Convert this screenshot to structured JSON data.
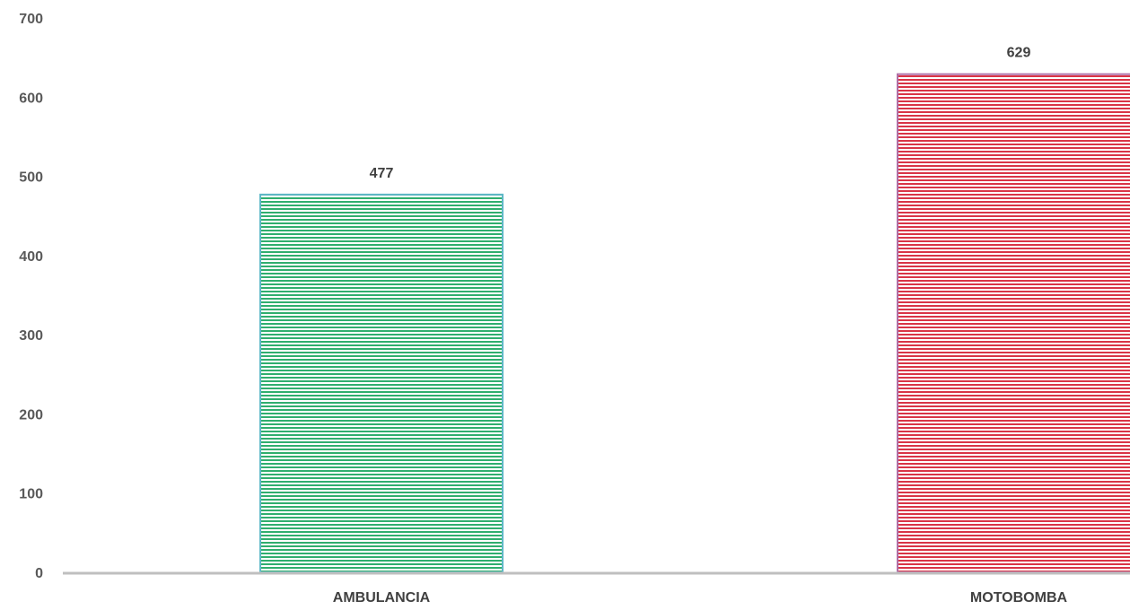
{
  "chart_data": {
    "type": "bar",
    "categories": [
      "AMBULANCIA",
      "MOTOBOMBA"
    ],
    "values": [
      477,
      629
    ],
    "data_labels": [
      "477",
      "629"
    ],
    "title": "",
    "xlabel": "",
    "ylabel": "",
    "ylim": [
      0,
      700
    ],
    "yticks": [
      "0",
      "100",
      "200",
      "300",
      "400",
      "500",
      "600",
      "700"
    ],
    "grid": false,
    "legend": "none",
    "colors": {
      "ambulancia": {
        "stripe": "#2fae6e",
        "border": "#5fb8c8"
      },
      "motobomba": {
        "stripe": "#d93446",
        "border": "#b070a8"
      },
      "axis": "#bfbfbf"
    }
  }
}
